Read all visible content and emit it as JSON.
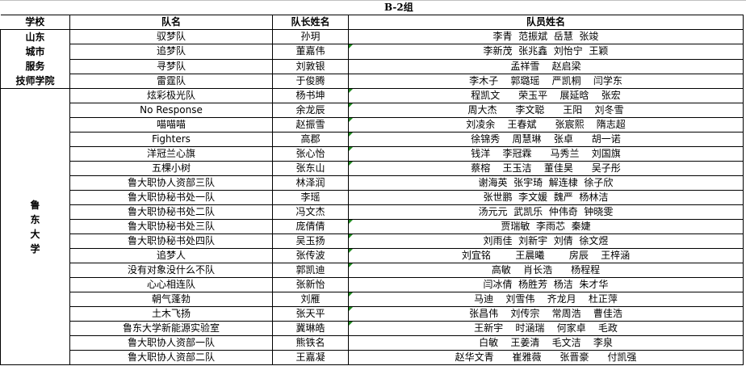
{
  "title": "B-2组",
  "headers": {
    "school": "学校",
    "team": "队名",
    "captain": "队长姓名",
    "members": "队员姓名"
  },
  "accent_colors": {
    "comment_marker": "#1e8a1e"
  },
  "groups": [
    {
      "school": "山东\n城市\n服务\n技师学院",
      "rows": [
        {
          "team": "驭梦队",
          "captain": "孙玥",
          "members": "李青  范振斌  岳慧  张竣",
          "marker": false
        },
        {
          "team": "追梦队",
          "captain": "董嘉伟",
          "members": "李新茂  张兆鑫  刘怡宁  王颖",
          "marker": true
        },
        {
          "team": "寻梦队",
          "captain": "刘敦银",
          "members": "孟祥雪    赵启梁",
          "marker": false
        },
        {
          "team": "雷霆队",
          "captain": "于俊腾",
          "members": "李木子    郭璐瑶    严凯桐    闫学东",
          "marker": false
        }
      ]
    },
    {
      "school": "鲁\n东\n大\n学",
      "rows": [
        {
          "team": "炫彩极光队",
          "captain": "杨书坤",
          "members": "程凯文      荣玉平    展延晗    张宏",
          "marker": true
        },
        {
          "team": "No Response",
          "captain": "余龙辰",
          "members": "周大杰      李文聪      王阳    刘冬雪",
          "marker": true
        },
        {
          "team": "喵喵喵",
          "captain": "赵振雪",
          "members": "刘凌余    王春斌      张宸熙    隋志超",
          "marker": true
        },
        {
          "team": "Fighters",
          "captain": "高郡",
          "members": "徐锦秀    周慧琳    张卓      胡一诺",
          "marker": true
        },
        {
          "team": "洋冠兰心旗",
          "captain": "张心怡",
          "members": "钱洋    李冠霖      马秀兰    刘国旗",
          "marker": true
        },
        {
          "team": "五棵小树",
          "captain": "张东山",
          "members": "蔡榕    王玉洁    董佳昊      吴子彤",
          "marker": true
        },
        {
          "team": "鲁大职协人资部三队",
          "captain": "林泽润",
          "members": "谢海英  张宇琦  解连棣  徐子欣",
          "marker": false
        },
        {
          "team": "鲁大职协秘书处一队",
          "captain": "李瑶",
          "members": "张世鹏  李文媛  魏严  杨林洁",
          "marker": false
        },
        {
          "team": "鲁大职协秘书处二队",
          "captain": "冯文杰",
          "members": "汤元元  武凯乐  仲伟奇  钟晓雯",
          "marker": false
        },
        {
          "team": "鲁大职协秘书处三队",
          "captain": "庞倩倩",
          "members": "贾瑞敏  李雨芯  秦婕",
          "marker": true
        },
        {
          "team": "鲁大职协秘书处四队",
          "captain": "吴玉扬",
          "members": "刘雨佳  刘新宇  刘倩  徐文煜",
          "marker": true
        },
        {
          "team": "追梦人",
          "captain": "张传波",
          "members": "刘宜铭        王晨曦        房辰    王梓涵",
          "marker": true
        },
        {
          "team": "没有对象没什么不队",
          "captain": "郭凯迪",
          "members": "高敏    肖长浩      杨程程",
          "marker": true
        },
        {
          "team": "心心相连队",
          "captain": "张新怡",
          "members": "闫冰倩  杨胜芳  杨洁  朱才华",
          "marker": false
        },
        {
          "team": "朝气蓬勃",
          "captain": "刘雁",
          "members": "马迪    刘雪伟    齐龙月    杜正萍",
          "marker": true
        },
        {
          "team": "土木飞扬",
          "captain": "张天平",
          "members": "张昌伟    刘传宗    常周浩    曹佳浩",
          "marker": true
        },
        {
          "team": "鲁东大学新能源实验室",
          "captain": "冀琳皓",
          "members": "王新宇    时涵瑞    何家卓    毛政",
          "marker": true
        },
        {
          "team": "鲁大职协人资部一队",
          "captain": "熊铁名",
          "members": "白敏    王姜清    毛文洁    李泉",
          "marker": false
        },
        {
          "team": "鲁大职协人资部二队",
          "captain": "王嘉凝",
          "members": "赵华文青      崔雅薇      张晋豪      付凯强",
          "marker": false
        }
      ]
    }
  ]
}
